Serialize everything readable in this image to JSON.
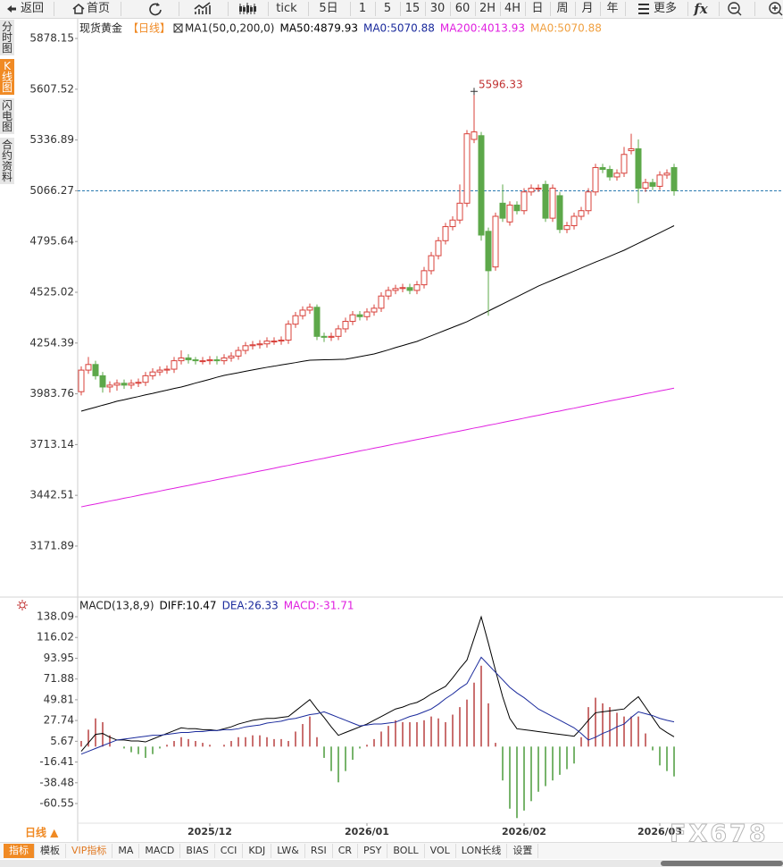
{
  "toolbar": [
    "返回",
    "首页",
    "tick",
    "5日",
    "1",
    "5",
    "15",
    "30",
    "60",
    "2H",
    "4H",
    "日",
    "周",
    "月",
    "年",
    "更多",
    "fx"
  ],
  "side_tabs": [
    "分时图",
    "K线图",
    "闪电图",
    "合约资料"
  ],
  "active_side_tab": 1,
  "chart_data": [
    {
      "type": "candlestick",
      "title": "现货黄金",
      "subtitle": "【日线】",
      "indicator": "MA1(50,0,200,0)",
      "categories": [
        null,
        null,
        null,
        null,
        null,
        null,
        null,
        null,
        null,
        null,
        null,
        null,
        null,
        null,
        null,
        null,
        null,
        null,
        "2025/12",
        null,
        null,
        null,
        null,
        null,
        null,
        null,
        null,
        null,
        null,
        null,
        null,
        null,
        null,
        null,
        null,
        null,
        null,
        null,
        null,
        null,
        "2026/01",
        null,
        null,
        null,
        null,
        null,
        null,
        null,
        null,
        null,
        null,
        null,
        null,
        null,
        null,
        null,
        null,
        null,
        null,
        null,
        null,
        null,
        "2026/02",
        null,
        null,
        null,
        null,
        null,
        null,
        null,
        null,
        null,
        null,
        null,
        null,
        null,
        null,
        null,
        null,
        null,
        null,
        "2026/03",
        null,
        null
      ],
      "open": [
        3995,
        4110,
        4140,
        4080,
        4020,
        4030,
        4040,
        4030,
        4040,
        4045,
        4080,
        4100,
        4110,
        4115,
        4160,
        4175,
        4165,
        4160,
        4160,
        4165,
        4160,
        4175,
        4185,
        4215,
        4240,
        4245,
        4250,
        4265,
        4265,
        4270,
        4355,
        4400,
        4430,
        4445,
        4290,
        4285,
        4290,
        4330,
        4370,
        4405,
        4395,
        4420,
        4440,
        4505,
        4535,
        4545,
        4550,
        4535,
        4565,
        4640,
        4720,
        4800,
        4875,
        4910,
        5000,
        5340,
        5360,
        4850,
        4660,
        5000,
        4900,
        4990,
        4960,
        5060,
        5080,
        5100,
        4920,
        5040,
        4860,
        4880,
        4930,
        4960,
        5060,
        5190,
        5180,
        5140,
        5160,
        5280,
        5290,
        5080,
        5110,
        5090,
        5150,
        5190
      ],
      "high": [
        4130,
        4180,
        4160,
        4100,
        4050,
        4060,
        4060,
        4060,
        4065,
        4100,
        4120,
        4130,
        4135,
        4180,
        4215,
        4195,
        4180,
        4180,
        4185,
        4185,
        4195,
        4205,
        4235,
        4260,
        4265,
        4270,
        4285,
        4285,
        4290,
        4375,
        4420,
        4450,
        4465,
        4460,
        4310,
        4310,
        4350,
        4390,
        4425,
        4425,
        4440,
        4460,
        4525,
        4555,
        4565,
        4570,
        4570,
        4585,
        4660,
        4740,
        4820,
        4895,
        4930,
        5100,
        5390,
        5596.33,
        5380,
        4870,
        4950,
        5100,
        5010,
        5010,
        5080,
        5100,
        5100,
        5120,
        5100,
        5060,
        4900,
        4950,
        4980,
        5080,
        5210,
        5210,
        5200,
        5180,
        5300,
        5370,
        5340,
        5130,
        5130,
        5170,
        5180,
        5210
      ],
      "low": [
        3975,
        4090,
        4060,
        3990,
        3990,
        4000,
        4010,
        4010,
        4020,
        4025,
        4060,
        4080,
        4090,
        4095,
        4140,
        4145,
        4140,
        4140,
        4140,
        4140,
        4140,
        4155,
        4165,
        4195,
        4220,
        4225,
        4230,
        4245,
        4245,
        4250,
        4335,
        4380,
        4410,
        4270,
        4260,
        4265,
        4270,
        4310,
        4350,
        4375,
        4375,
        4400,
        4420,
        4485,
        4515,
        4525,
        4515,
        4515,
        4545,
        4620,
        4700,
        4780,
        4855,
        4890,
        4980,
        5320,
        4800,
        4400,
        4640,
        4900,
        4880,
        4940,
        4940,
        5040,
        5060,
        4900,
        4900,
        4840,
        4840,
        4860,
        4910,
        4940,
        5040,
        5160,
        5120,
        5120,
        5140,
        5260,
        5000,
        5060,
        5070,
        5070,
        5130,
        5040
      ],
      "close": [
        4110,
        4140,
        4080,
        4020,
        4030,
        4040,
        4030,
        4040,
        4045,
        4080,
        4100,
        4110,
        4115,
        4160,
        4175,
        4165,
        4160,
        4160,
        4165,
        4160,
        4175,
        4185,
        4215,
        4240,
        4245,
        4250,
        4265,
        4265,
        4270,
        4355,
        4400,
        4430,
        4445,
        4290,
        4285,
        4290,
        4330,
        4370,
        4405,
        4395,
        4420,
        4440,
        4505,
        4535,
        4545,
        4550,
        4535,
        4565,
        4640,
        4720,
        4800,
        4875,
        4910,
        5000,
        5370,
        5380,
        4830,
        4640,
        4930,
        4920,
        4990,
        4960,
        5060,
        5080,
        5080,
        4920,
        5080,
        4860,
        4880,
        4930,
        4960,
        5060,
        5190,
        5180,
        5140,
        5160,
        5260,
        5290,
        5080,
        5110,
        5090,
        5150,
        5160,
        5066
      ],
      "up_color": "#d8403a",
      "down_color": "#5da84a",
      "series": [
        {
          "name": "MA50:4879.93",
          "color": "#000000",
          "values": [
            3891,
            3902,
            3912,
            3923,
            3933,
            3944,
            3952,
            3961,
            3969,
            3978,
            3986,
            3995,
            4003,
            4012,
            4020,
            4030,
            4041,
            4051,
            4061,
            4072,
            4082,
            4089,
            4096,
            4104,
            4111,
            4118,
            4125,
            4131,
            4138,
            4144,
            4150,
            4157,
            4163,
            4164,
            4165,
            4166,
            4167,
            4168,
            4175,
            4182,
            4189,
            4196,
            4207,
            4218,
            4230,
            4241,
            4252,
            4263,
            4278,
            4293,
            4308,
            4323,
            4338,
            4353,
            4368,
            4387,
            4406,
            4425,
            4444,
            4463,
            4482,
            4501,
            4520,
            4539,
            4558,
            4574,
            4590,
            4606,
            4622,
            4638,
            4654,
            4670,
            4686,
            4701,
            4717,
            4733,
            4749,
            4768,
            4786,
            4805,
            4824,
            4842,
            4861,
            4880
          ]
        },
        {
          "name": "MA0:5070.88",
          "color": "#1a2a9c"
        },
        {
          "name": "MA200:4013.93",
          "color": "#e020e0",
          "values": [
            3381,
            3389,
            3396,
            3404,
            3412,
            3419,
            3427,
            3434,
            3442,
            3450,
            3457,
            3465,
            3473,
            3480,
            3488,
            3495,
            3503,
            3511,
            3518,
            3526,
            3534,
            3541,
            3549,
            3556,
            3564,
            3572,
            3579,
            3587,
            3595,
            3602,
            3610,
            3618,
            3625,
            3633,
            3640,
            3648,
            3656,
            3663,
            3671,
            3679,
            3686,
            3694,
            3701,
            3709,
            3717,
            3724,
            3732,
            3740,
            3747,
            3755,
            3762,
            3770,
            3778,
            3785,
            3793,
            3801,
            3808,
            3816,
            3823,
            3831,
            3839,
            3846,
            3854,
            3862,
            3869,
            3877,
            3885,
            3892,
            3900,
            3907,
            3915,
            3923,
            3930,
            3938,
            3946,
            3953,
            3961,
            3968,
            3976,
            3984,
            3991,
            3999,
            4006,
            4014
          ]
        },
        {
          "name": "MA0:5070.88",
          "color": "#f0a040"
        }
      ],
      "ylim": [
        2900,
        5988
      ],
      "yticks": [
        5878.15,
        5607.52,
        5336.89,
        5066.27,
        4795.64,
        4525.02,
        4254.39,
        3983.76,
        3713.14,
        3442.51,
        3171.89
      ],
      "grid": false,
      "mark_high": true,
      "last_price_line": true,
      "last_price_color": "#2a7ab0"
    },
    {
      "type": "macd",
      "title": "MACD(13,8,9)",
      "series": [
        {
          "name": "DIFF:10.47",
          "color": "#000000",
          "values": [
            -5,
            4,
            13,
            14,
            10,
            7,
            7,
            6,
            6,
            5,
            8,
            11,
            14,
            17,
            20,
            19,
            19,
            18,
            18,
            17,
            19,
            21,
            24,
            26,
            28,
            29,
            30,
            30,
            31,
            32,
            38,
            44,
            50,
            40,
            31,
            21,
            12,
            15,
            18,
            21,
            24,
            28,
            32,
            36,
            40,
            42,
            45,
            47,
            51,
            56,
            60,
            64,
            73,
            83,
            92,
            115,
            138,
            110,
            81,
            53,
            30,
            19,
            18,
            17,
            16,
            15,
            14,
            13,
            12,
            11,
            19,
            28,
            36,
            37,
            38,
            39,
            40,
            47,
            53,
            42,
            31,
            20,
            15,
            10.47
          ]
        },
        {
          "name": "DEA:26.33",
          "color": "#1a2a9c",
          "values": [
            -8,
            -5,
            -2,
            1,
            4,
            7,
            8,
            9,
            10,
            11,
            12,
            12,
            13,
            14,
            15,
            15,
            16,
            16,
            17,
            17,
            18,
            18,
            19,
            21,
            22,
            23,
            25,
            26,
            27,
            29,
            30,
            32,
            34,
            35,
            37,
            34,
            31,
            28,
            25,
            22,
            23,
            24,
            24,
            25,
            26,
            29,
            32,
            34,
            37,
            40,
            45,
            51,
            56,
            62,
            67,
            81,
            95,
            87,
            79,
            71,
            63,
            57,
            52,
            46,
            40,
            36,
            32,
            28,
            24,
            20,
            14,
            7,
            10,
            14,
            17,
            21,
            24,
            31,
            37,
            35,
            33,
            30,
            28,
            26.33
          ]
        },
        {
          "name": "MACD:-31.71",
          "color": "#e020e0",
          "style": "histogram",
          "up_color": "#b84040",
          "down_color": "#4a9a3a",
          "values": [
            6,
            18,
            30,
            26,
            12,
            0,
            -2,
            -6,
            -8,
            -12,
            -8,
            -2,
            2,
            6,
            10,
            8,
            6,
            4,
            2,
            0,
            2,
            6,
            10,
            10,
            12,
            12,
            10,
            8,
            8,
            6,
            16,
            24,
            32,
            10,
            -12,
            -26,
            -38,
            -26,
            -14,
            -2,
            2,
            8,
            16,
            22,
            28,
            26,
            26,
            26,
            28,
            32,
            30,
            26,
            34,
            42,
            50,
            68,
            86,
            46,
            4,
            -36,
            -66,
            -76,
            -68,
            -58,
            -48,
            -42,
            -36,
            -30,
            -24,
            -18,
            10,
            42,
            52,
            46,
            42,
            36,
            32,
            32,
            32,
            14,
            -4,
            -20,
            -26,
            -31.71
          ]
        }
      ],
      "ylim": [
        -80.5,
        157.1
      ],
      "yticks": [
        138.09,
        116.02,
        93.95,
        71.88,
        49.81,
        27.74,
        5.67,
        -16.41,
        -38.48,
        -60.55
      ]
    }
  ],
  "period_button": "日线 ▲",
  "indicator_tabs": [
    "指标",
    "模板",
    "VIP指标",
    "MA",
    "MACD",
    "BIAS",
    "CCI",
    "KDJ",
    "LW&",
    "RSI",
    "CR",
    "PSY",
    "BOLL",
    "VOL",
    "LON长线",
    "设置"
  ],
  "active_indicator_tab": 0,
  "watermark": "FX678"
}
